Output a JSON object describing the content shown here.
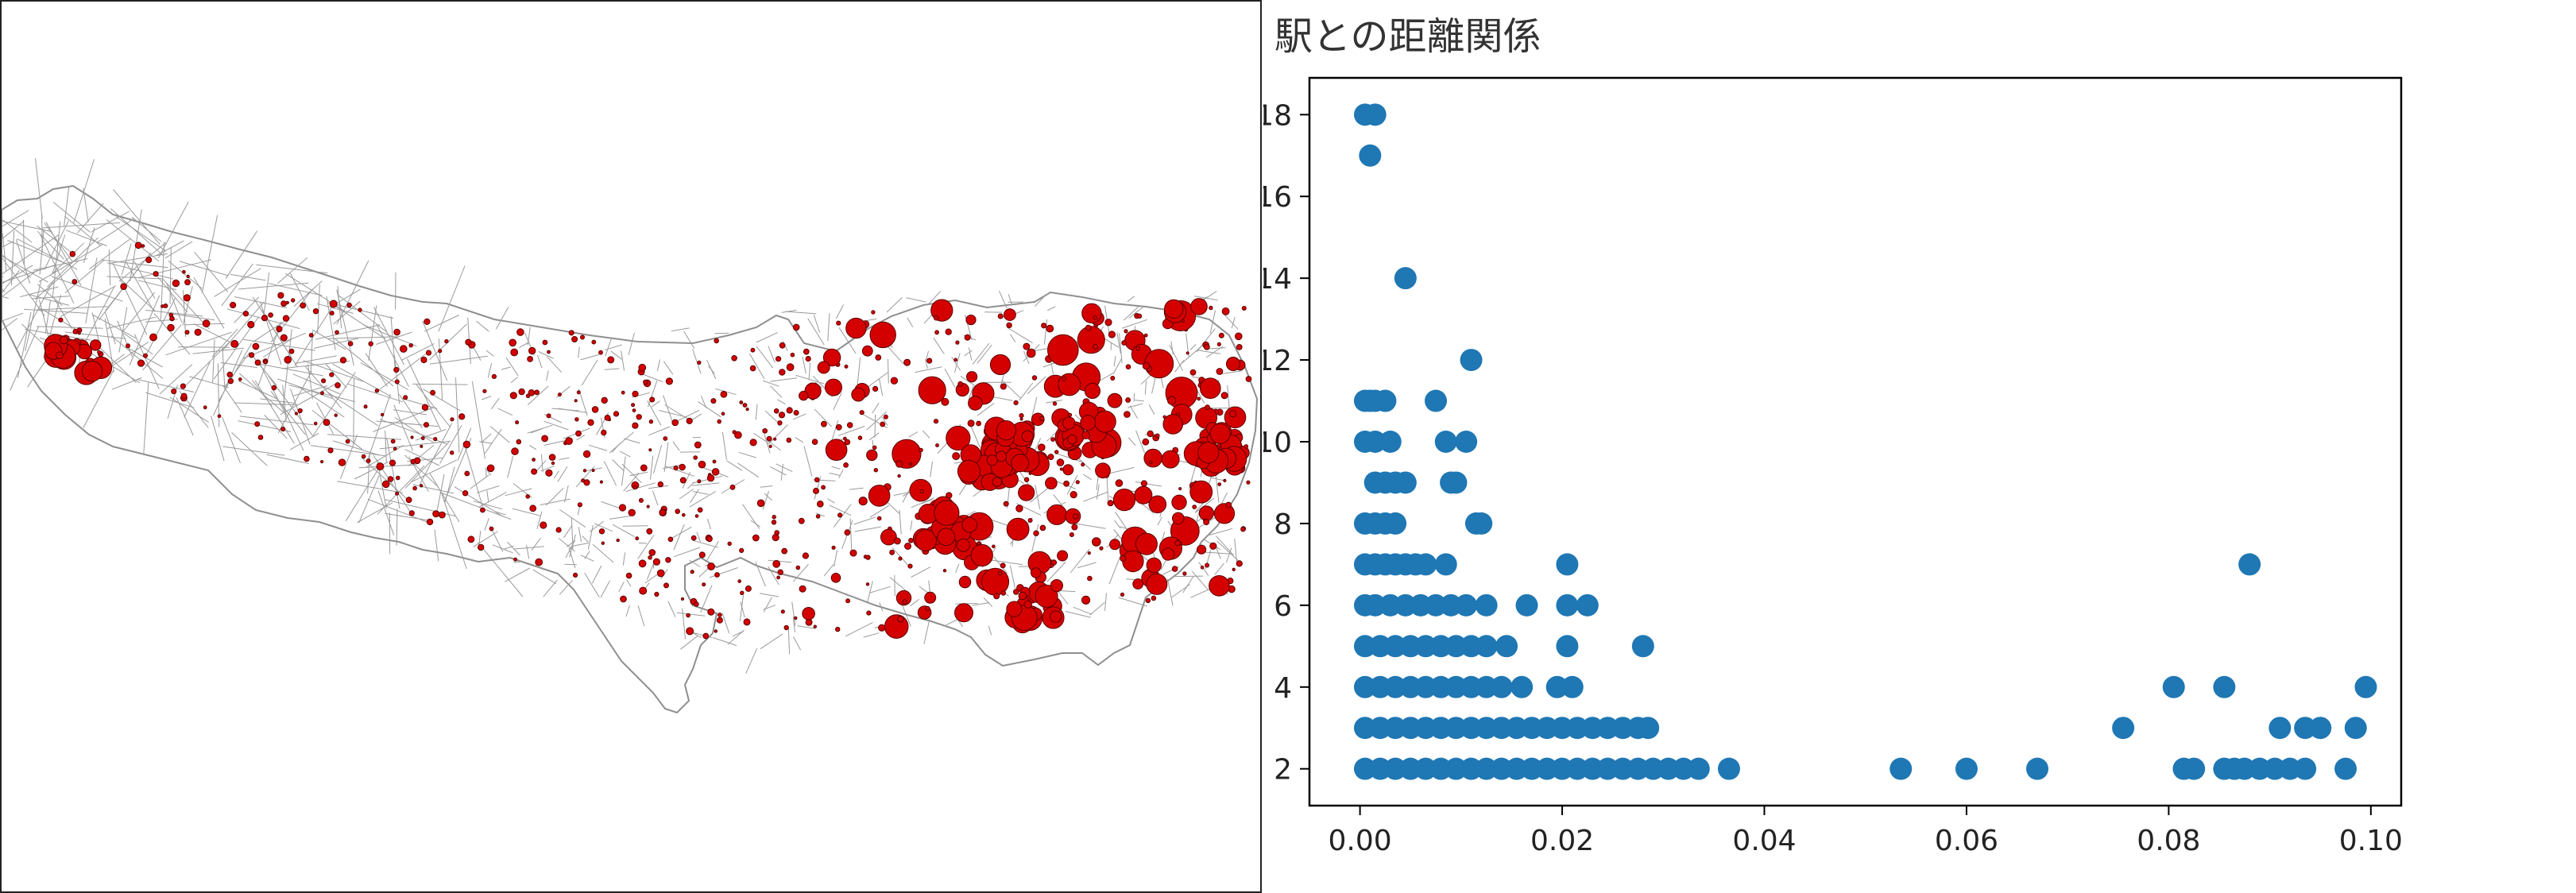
{
  "map": {
    "region_fill": "#ffffff",
    "boundary_color": "#9a9a9a",
    "point_color": "#d40000",
    "point_edge_color": "#5a0000"
  },
  "chart_data": {
    "type": "scatter",
    "title": "駅との距離関係",
    "xlabel": "",
    "ylabel": "",
    "xlim": [
      -0.005,
      0.103
    ],
    "ylim": [
      1.1,
      18.9
    ],
    "xticks": [
      "0.00",
      "0.02",
      "0.04",
      "0.06",
      "0.08",
      "0.10"
    ],
    "xtick_values": [
      0.0,
      0.02,
      0.04,
      0.06,
      0.08,
      0.1
    ],
    "yticks": [
      "2",
      "4",
      "6",
      "8",
      "10",
      "12",
      "14",
      "16",
      "18"
    ],
    "ytick_values": [
      2,
      4,
      6,
      8,
      10,
      12,
      14,
      16,
      18
    ],
    "grid": false,
    "marker_color": "#1f77b4",
    "series": [
      {
        "points": [
          [
            0.0005,
            18
          ],
          [
            0.0015,
            18
          ],
          [
            0.001,
            17
          ],
          [
            0.0045,
            14
          ],
          [
            0.011,
            12
          ],
          [
            0.0005,
            11
          ],
          [
            0.001,
            11
          ],
          [
            0.0015,
            11
          ],
          [
            0.0025,
            11
          ],
          [
            0.0075,
            11
          ],
          [
            0.0005,
            10
          ],
          [
            0.0015,
            10
          ],
          [
            0.003,
            10
          ],
          [
            0.0085,
            10
          ],
          [
            0.0105,
            10
          ],
          [
            0.0015,
            9
          ],
          [
            0.0025,
            9
          ],
          [
            0.0035,
            9
          ],
          [
            0.0045,
            9
          ],
          [
            0.009,
            9
          ],
          [
            0.0095,
            9
          ],
          [
            0.0005,
            8
          ],
          [
            0.0015,
            8
          ],
          [
            0.0025,
            8
          ],
          [
            0.0035,
            8
          ],
          [
            0.0115,
            8
          ],
          [
            0.012,
            8
          ],
          [
            0.0005,
            7
          ],
          [
            0.0015,
            7
          ],
          [
            0.0025,
            7
          ],
          [
            0.0035,
            7
          ],
          [
            0.0045,
            7
          ],
          [
            0.0055,
            7
          ],
          [
            0.0065,
            7
          ],
          [
            0.0085,
            7
          ],
          [
            0.0205,
            7
          ],
          [
            0.088,
            7
          ],
          [
            0.0005,
            6
          ],
          [
            0.0015,
            6
          ],
          [
            0.003,
            6
          ],
          [
            0.0045,
            6
          ],
          [
            0.006,
            6
          ],
          [
            0.0075,
            6
          ],
          [
            0.009,
            6
          ],
          [
            0.0105,
            6
          ],
          [
            0.0125,
            6
          ],
          [
            0.0165,
            6
          ],
          [
            0.0205,
            6
          ],
          [
            0.0225,
            6
          ],
          [
            0.0005,
            5
          ],
          [
            0.002,
            5
          ],
          [
            0.0035,
            5
          ],
          [
            0.005,
            5
          ],
          [
            0.0065,
            5
          ],
          [
            0.008,
            5
          ],
          [
            0.0095,
            5
          ],
          [
            0.011,
            5
          ],
          [
            0.0125,
            5
          ],
          [
            0.0145,
            5
          ],
          [
            0.0205,
            5
          ],
          [
            0.028,
            5
          ],
          [
            0.0005,
            4
          ],
          [
            0.002,
            4
          ],
          [
            0.0035,
            4
          ],
          [
            0.005,
            4
          ],
          [
            0.0065,
            4
          ],
          [
            0.008,
            4
          ],
          [
            0.0095,
            4
          ],
          [
            0.011,
            4
          ],
          [
            0.0125,
            4
          ],
          [
            0.014,
            4
          ],
          [
            0.016,
            4
          ],
          [
            0.0195,
            4
          ],
          [
            0.021,
            4
          ],
          [
            0.0805,
            4
          ],
          [
            0.0855,
            4
          ],
          [
            0.0995,
            4
          ],
          [
            0.0005,
            3
          ],
          [
            0.002,
            3
          ],
          [
            0.0035,
            3
          ],
          [
            0.005,
            3
          ],
          [
            0.0065,
            3
          ],
          [
            0.008,
            3
          ],
          [
            0.0095,
            3
          ],
          [
            0.011,
            3
          ],
          [
            0.0125,
            3
          ],
          [
            0.014,
            3
          ],
          [
            0.0155,
            3
          ],
          [
            0.017,
            3
          ],
          [
            0.0185,
            3
          ],
          [
            0.02,
            3
          ],
          [
            0.0215,
            3
          ],
          [
            0.023,
            3
          ],
          [
            0.0245,
            3
          ],
          [
            0.026,
            3
          ],
          [
            0.0275,
            3
          ],
          [
            0.0285,
            3
          ],
          [
            0.0755,
            3
          ],
          [
            0.091,
            3
          ],
          [
            0.0935,
            3
          ],
          [
            0.095,
            3
          ],
          [
            0.0985,
            3
          ],
          [
            0.0005,
            2
          ],
          [
            0.002,
            2
          ],
          [
            0.0035,
            2
          ],
          [
            0.005,
            2
          ],
          [
            0.0065,
            2
          ],
          [
            0.008,
            2
          ],
          [
            0.0095,
            2
          ],
          [
            0.011,
            2
          ],
          [
            0.0125,
            2
          ],
          [
            0.014,
            2
          ],
          [
            0.0155,
            2
          ],
          [
            0.017,
            2
          ],
          [
            0.0185,
            2
          ],
          [
            0.02,
            2
          ],
          [
            0.0215,
            2
          ],
          [
            0.023,
            2
          ],
          [
            0.0245,
            2
          ],
          [
            0.026,
            2
          ],
          [
            0.0275,
            2
          ],
          [
            0.029,
            2
          ],
          [
            0.0305,
            2
          ],
          [
            0.032,
            2
          ],
          [
            0.0335,
            2
          ],
          [
            0.0365,
            2
          ],
          [
            0.0535,
            2
          ],
          [
            0.06,
            2
          ],
          [
            0.067,
            2
          ],
          [
            0.0815,
            2
          ],
          [
            0.0825,
            2
          ],
          [
            0.0855,
            2
          ],
          [
            0.0865,
            2
          ],
          [
            0.0875,
            2
          ],
          [
            0.089,
            2
          ],
          [
            0.0905,
            2
          ],
          [
            0.092,
            2
          ],
          [
            0.0935,
            2
          ],
          [
            0.0975,
            2
          ]
        ]
      }
    ]
  }
}
